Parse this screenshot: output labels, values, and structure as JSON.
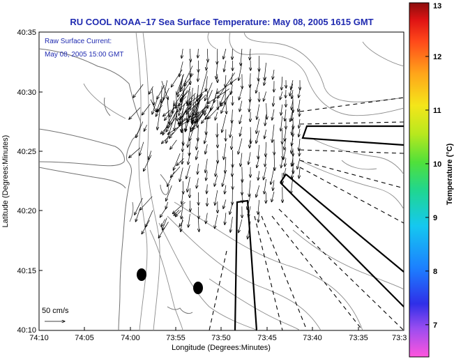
{
  "title": "RU COOL  NOAA–17  Sea Surface Temperature:  May 08, 2005 1615 GMT",
  "annotation": {
    "line1": "Raw Surface Current:",
    "line2": "May 08, 2005 15:00 GMT"
  },
  "axes": {
    "xlabel": "Longitude (Degrees:Minutes)",
    "ylabel": "Latitude (Degrees:Minutes)",
    "x_ticks": [
      "74:10",
      "74:05",
      "74:00",
      "73:55",
      "73:50",
      "73:45",
      "73:40",
      "73:35",
      "73:3"
    ],
    "y_ticks": [
      "40:35",
      "40:30",
      "40:25",
      "40:20",
      "40:15",
      "40:10"
    ]
  },
  "scale": {
    "label": "50 cm/s"
  },
  "colorbar": {
    "label": "Temperature (°C)",
    "ticks": [
      "13",
      "12",
      "11",
      "10",
      "9",
      "8",
      "7"
    ],
    "min": 6.4,
    "max": 13,
    "colors": [
      "#ff55dd",
      "#9b4df0",
      "#2f2fe8",
      "#1c7fff",
      "#15c8f0",
      "#20d690",
      "#50e03a",
      "#b8e81e",
      "#f4e61a",
      "#ffa51a",
      "#ff4a1a",
      "#e01414",
      "#8c0d0d"
    ]
  }
}
